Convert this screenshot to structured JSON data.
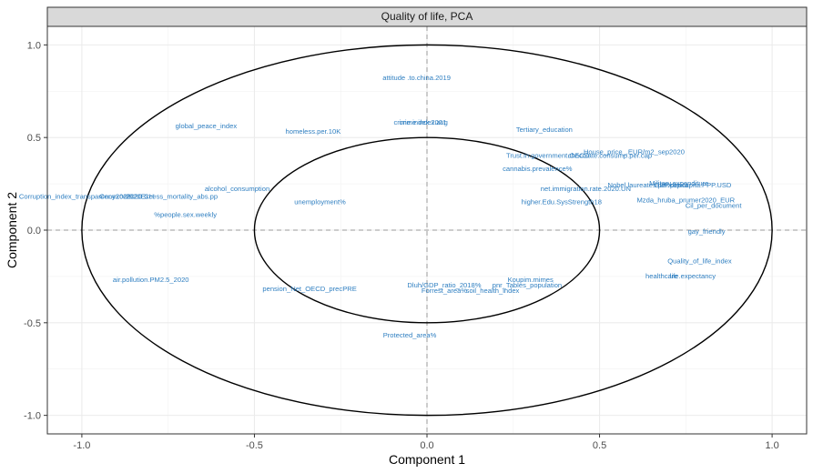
{
  "chart_data": {
    "type": "scatter",
    "title": "Quality of life, PCA",
    "xlabel": "Component  1",
    "ylabel": "Component  2",
    "xlim": [
      -1.1,
      1.1
    ],
    "ylim": [
      -1.1,
      1.1
    ],
    "x_ticks": [
      -1.0,
      -0.5,
      0.0,
      0.5,
      1.0
    ],
    "x_tick_labels": [
      "-1.0",
      "-0.5",
      "0.0",
      "0.5",
      "1.0"
    ],
    "y_ticks": [
      -1.0,
      -0.5,
      0.0,
      0.5,
      1.0
    ],
    "y_tick_labels": [
      "-1.0",
      "-0.5",
      "0.0",
      "0.5",
      "1.0"
    ],
    "grid": true,
    "reference_lines": {
      "x": 0,
      "y": 0,
      "style": "dashed"
    },
    "circles": [
      {
        "center": [
          0,
          0
        ],
        "rx": 1.0,
        "ry": 1.0
      },
      {
        "center": [
          0,
          0
        ],
        "rx": 0.5,
        "ry": 0.5
      }
    ],
    "colors": {
      "labels": "#2f7fc1",
      "panel_border": "#333333",
      "strip_fill": "#d9d9d9",
      "grid": "#ebebeb"
    },
    "points": [
      {
        "label": "attitude .to.china.2019",
        "x": -0.03,
        "y": 0.82
      },
      {
        "label": "global_peace_index",
        "x": -0.64,
        "y": 0.56
      },
      {
        "label": "homeless.per.10K",
        "x": -0.33,
        "y": 0.53
      },
      {
        "label": "crime.index.avg",
        "x": -0.01,
        "y": 0.58
      },
      {
        "label": "crime.index.2021",
        "x": -0.02,
        "y": 0.58
      },
      {
        "label": "Tertiary_education",
        "x": 0.34,
        "y": 0.54
      },
      {
        "label": "House_price_.EUR/m2_sep2020",
        "x": 0.6,
        "y": 0.42
      },
      {
        "label": "Trust.in.government.OECD",
        "x": 0.35,
        "y": 0.4
      },
      {
        "label": "chocolate.consump.per.cap",
        "x": 0.53,
        "y": 0.4
      },
      {
        "label": "cannabis.prevalence%",
        "x": 0.32,
        "y": 0.33
      },
      {
        "label": "alcohol_consumption",
        "x": -0.55,
        "y": 0.22
      },
      {
        "label": "Corruption_index_transparency2020",
        "x": -1.02,
        "y": 0.18
      },
      {
        "label": "Cenexce2020.CH",
        "x": -0.87,
        "y": 0.18
      },
      {
        "label": "2020Excess_mortality_abs.pp",
        "x": -0.74,
        "y": 0.18
      },
      {
        "label": "unemployment%",
        "x": -0.31,
        "y": 0.15
      },
      {
        "label": "%people.sex.weekly",
        "x": -0.7,
        "y": 0.08
      },
      {
        "label": "net.immigration.rate.2020.UN",
        "x": 0.46,
        "y": 0.22
      },
      {
        "label": "Nobel.laureates.per.capita",
        "x": 0.64,
        "y": 0.24
      },
      {
        "label": "Military.expenditure",
        "x": 0.73,
        "y": 0.25
      },
      {
        "label": "GDP.per.capita.PPP.USD",
        "x": 0.77,
        "y": 0.24
      },
      {
        "label": "higher.Edu.SysStrength18",
        "x": 0.39,
        "y": 0.15
      },
      {
        "label": "Mzda_hruba_prumer2020_EUR",
        "x": 0.75,
        "y": 0.16
      },
      {
        "label": "Cil_per_document",
        "x": 0.83,
        "y": 0.13
      },
      {
        "label": "gay_friendly",
        "x": 0.81,
        "y": -0.01
      },
      {
        "label": "Quality_of_life_index",
        "x": 0.79,
        "y": -0.17
      },
      {
        "label": "healthcare",
        "x": 0.68,
        "y": -0.25
      },
      {
        "label": "life.expectancy",
        "x": 0.77,
        "y": -0.25
      },
      {
        "label": "air.pollution.PM2.5_2020",
        "x": -0.8,
        "y": -0.27
      },
      {
        "label": "pension_Net_OECD_precPRE",
        "x": -0.34,
        "y": -0.32
      },
      {
        "label": "Dluh/GDP_ratio_2018%",
        "x": 0.05,
        "y": -0.3
      },
      {
        "label": "Koupim.mimes",
        "x": 0.3,
        "y": -0.27
      },
      {
        "label": "Forrest_area%",
        "x": 0.05,
        "y": -0.33
      },
      {
        "label": "soil_health_index",
        "x": 0.19,
        "y": -0.33
      },
      {
        "label": "pnr_Tables_population",
        "x": 0.29,
        "y": -0.3
      },
      {
        "label": "Protected_area%",
        "x": -0.05,
        "y": -0.57
      }
    ]
  }
}
